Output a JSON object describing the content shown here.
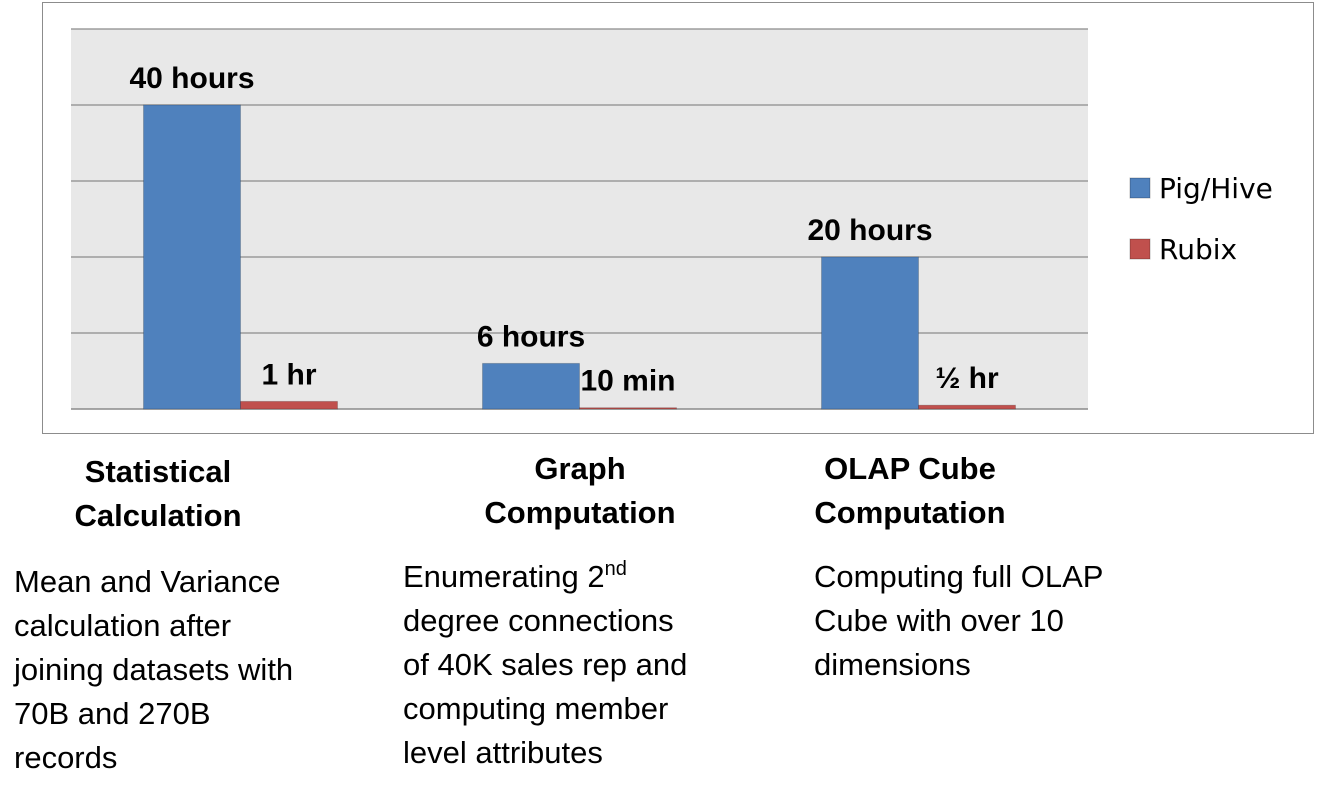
{
  "chart_data": {
    "type": "bar",
    "categories": [
      "Statistical Calculation",
      "Graph Computation",
      "OLAP Cube Computation"
    ],
    "series": [
      {
        "name": "Pig/Hive",
        "color": "#4f81bd",
        "values": [
          40,
          6,
          20
        ],
        "labels": [
          "40 hours",
          "6 hours",
          "20 hours"
        ]
      },
      {
        "name": "Rubix",
        "color": "#c0504d",
        "values": [
          1,
          0.1667,
          0.5
        ],
        "labels": [
          "1 hr",
          "10 min",
          "½ hr"
        ]
      }
    ],
    "ylim": [
      0,
      50
    ],
    "grid": true,
    "legend": "right",
    "plot_bg": "#e8e8e8"
  },
  "categories": [
    {
      "title_lines": [
        "Statistical",
        "Calculation"
      ],
      "desc_lines": [
        "Mean and Variance",
        "calculation after",
        "joining datasets with",
        "70B and 270B",
        "records"
      ]
    },
    {
      "title_lines": [
        "Graph",
        "Computation"
      ],
      "desc_first": "Enumerating 2",
      "desc_sup": "nd",
      "desc_lines": [
        "degree connections",
        "of 40K sales rep and",
        "computing member",
        "level attributes"
      ]
    },
    {
      "title_lines": [
        "OLAP Cube",
        "Computation"
      ],
      "desc_lines": [
        "Computing full OLAP",
        "Cube with over 10",
        "dimensions"
      ]
    }
  ]
}
